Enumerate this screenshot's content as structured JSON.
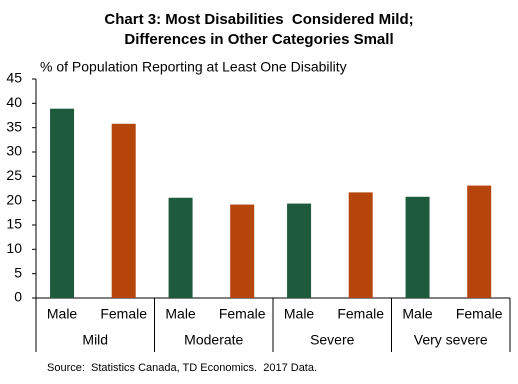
{
  "chart_data": {
    "type": "bar",
    "title": [
      "Chart 3: Most Disabilities  Considered Mild;",
      "Differences in Other Categories Small"
    ],
    "y_label": "% of Population Reporting at Least One Disability",
    "source": "Source:  Statistics Canada, TD Economics.  2017 Data.",
    "categories": [
      "Mild",
      "Moderate",
      "Severe",
      "Very severe"
    ],
    "series": [
      {
        "name": "Male",
        "color": "#1e5a3c",
        "values": [
          38.9,
          20.6,
          19.4,
          20.8
        ]
      },
      {
        "name": "Female",
        "color": "#b5450b",
        "values": [
          35.8,
          19.2,
          21.7,
          23.1
        ]
      }
    ],
    "ylim": [
      0,
      45
    ],
    "yticks": [
      0,
      5,
      10,
      15,
      20,
      25,
      30,
      35,
      40,
      45
    ],
    "grid": false
  }
}
